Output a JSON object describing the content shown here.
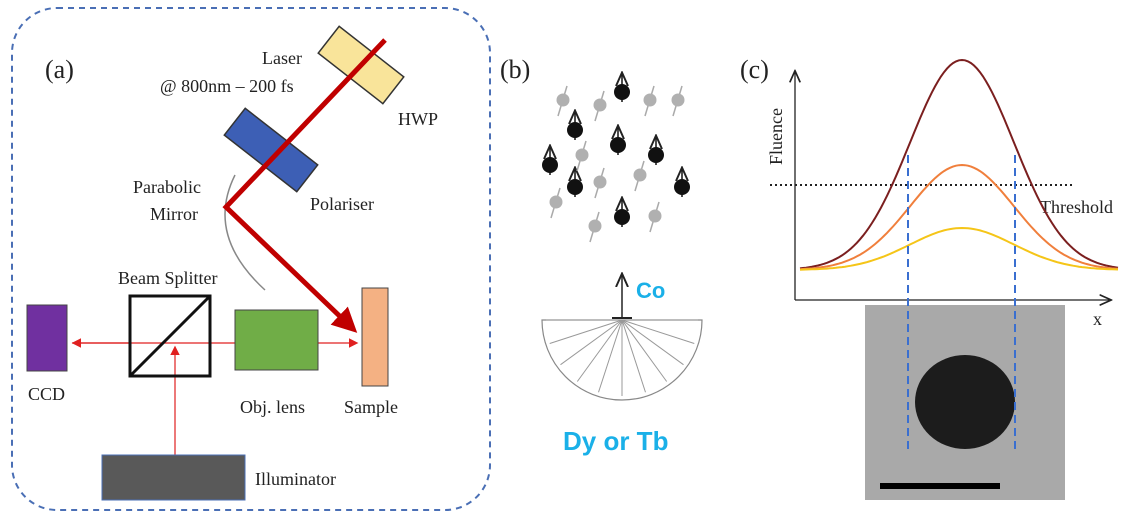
{
  "panel_a": {
    "label": "(a)",
    "laser": [
      "Laser",
      "@ 800nm – 200 fs"
    ],
    "hwp": "HWP",
    "mirror": [
      "Parabolic",
      "Mirror"
    ],
    "polariser": "Polariser",
    "beam_splitter": "Beam Splitter",
    "ccd": "CCD",
    "objective": "Obj. lens",
    "sample": "Sample",
    "illuminator": "Illuminator"
  },
  "panel_b": {
    "label": "(b)",
    "upper": "Co",
    "lower": "Dy or Tb"
  },
  "panel_c": {
    "label": "(c)",
    "y_axis": "Fluence",
    "threshold": "Threshold",
    "x_axis": "x"
  }
}
